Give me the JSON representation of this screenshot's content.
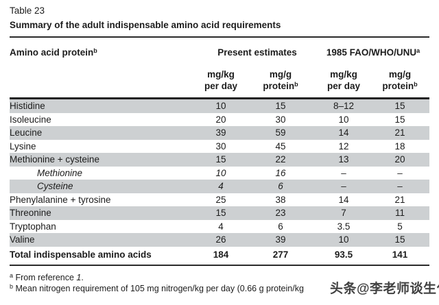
{
  "title": {
    "label": "Table 23",
    "subtitle": "Summary of the adult indispensable amino acid requirements"
  },
  "table": {
    "col_name_header": "Amino acid protein",
    "col_name_header_sup": "b",
    "group_headers": [
      {
        "label": "Present estimates",
        "sup": ""
      },
      {
        "label": "1985 FAO/WHO/UNU",
        "sup": "a"
      }
    ],
    "sub_headers": [
      {
        "line1": "mg/kg",
        "line2": "per day",
        "sup": ""
      },
      {
        "line1": "mg/g",
        "line2": "protein",
        "sup": "b"
      },
      {
        "line1": "mg/kg",
        "line2": "per day",
        "sup": ""
      },
      {
        "line1": "mg/g",
        "line2": "protein",
        "sup": "b"
      }
    ],
    "rows": [
      {
        "name": "Histidine",
        "values": [
          "10",
          "15",
          "8–12",
          "15"
        ]
      },
      {
        "name": "Isoleucine",
        "values": [
          "20",
          "30",
          "10",
          "15"
        ]
      },
      {
        "name": "Leucine",
        "values": [
          "39",
          "59",
          "14",
          "21"
        ]
      },
      {
        "name": "Lysine",
        "values": [
          "30",
          "45",
          "12",
          "18"
        ]
      },
      {
        "name": "Methionine + cysteine",
        "values": [
          "15",
          "22",
          "13",
          "20"
        ]
      },
      {
        "name": "Methionine",
        "values": [
          "10",
          "16",
          "–",
          "–"
        ]
      },
      {
        "name": "Cysteine",
        "values": [
          "4",
          "6",
          "–",
          "–"
        ]
      },
      {
        "name": "Phenylalanine + tyrosine",
        "values": [
          "25",
          "38",
          "14",
          "21"
        ]
      },
      {
        "name": "Threonine",
        "values": [
          "15",
          "23",
          "7",
          "11"
        ]
      },
      {
        "name": "Tryptophan",
        "values": [
          "4",
          "6",
          "3.5",
          "5"
        ]
      },
      {
        "name": "Valine",
        "values": [
          "26",
          "39",
          "10",
          "15"
        ]
      }
    ],
    "total_row": {
      "name": "Total indispensable amino acids",
      "values": [
        "184",
        "277",
        "93.5",
        "141"
      ]
    }
  },
  "footnotes": {
    "a": {
      "sup": "a",
      "prefix": "From reference ",
      "ref": "1",
      "suffix": "."
    },
    "b": {
      "sup": "b",
      "text": "Mean nitrogen requirement of 105 mg nitrogen/kg per day (0.66 g protein/kg"
    }
  },
  "watermark": {
    "text": "头条@李老师谈生化"
  },
  "colors": {
    "row_shade": "#cdd0d2",
    "text": "#1c1c1c",
    "watermark": "#414141"
  }
}
